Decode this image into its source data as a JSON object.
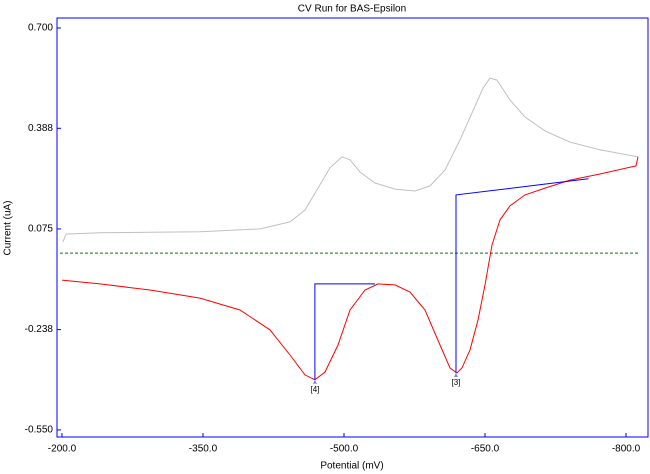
{
  "chart_data": {
    "type": "line",
    "title": "CV Run for BAS-Epsilon",
    "x_label": "Potential (mV)",
    "y_label": "Current (uA)",
    "xlim": [
      -194.7,
      -823.4
    ],
    "ylim": [
      -0.572,
      0.731
    ],
    "xticks": [
      {
        "value": -200,
        "label": "-200.0"
      },
      {
        "value": -350,
        "label": "-350.0"
      },
      {
        "value": -500,
        "label": "-500.0"
      },
      {
        "value": -650,
        "label": "-650.0"
      },
      {
        "value": -800,
        "label": "-800.0"
      }
    ],
    "yticks": [
      {
        "value": 0.7,
        "label": "0.700"
      },
      0.388,
      0.075,
      -0.238,
      {
        "value": -0.55,
        "label": "-0.550"
      }
    ],
    "series": [
      {
        "color": "#c0c0c0",
        "x": [
          -201.1,
          -204.3,
          -240.4,
          -346.8,
          -410.6,
          -442.6,
          -458.5,
          -472.3,
          -485.1,
          -497.9,
          -506.4,
          -517,
          -533,
          -554.3,
          -575.5,
          -591.5,
          -607.4,
          -623.4,
          -636.2,
          -647.9,
          -655.3,
          -662.8,
          -676.6,
          -692.6,
          -713.8,
          -740.4,
          -772.3,
          -812.8
        ],
        "y": [
          0.035,
          0.059,
          0.063,
          0.066,
          0.075,
          0.097,
          0.134,
          0.202,
          0.265,
          0.299,
          0.29,
          0.252,
          0.218,
          0.199,
          0.193,
          0.209,
          0.258,
          0.352,
          0.436,
          0.513,
          0.544,
          0.538,
          0.476,
          0.423,
          0.38,
          0.345,
          0.321,
          0.299
        ]
      },
      {
        "color": "#ff0000",
        "x": [
          -812.8,
          -810.6,
          -772.3,
          -740.4,
          -713.8,
          -692.6,
          -676.6,
          -666,
          -657.4,
          -650,
          -642.6,
          -634,
          -625.5,
          -620.2,
          -612.8,
          -602.1,
          -586.2,
          -570.2,
          -554.3,
          -536.2,
          -522.3,
          -506.4,
          -493.6,
          -479.8,
          -469.1,
          -458.5,
          -442.6,
          -421.3,
          -389.4,
          -346.8,
          -293.6,
          -240.4,
          -200
        ],
        "y": [
          0.299,
          0.271,
          0.246,
          0.227,
          0.202,
          0.181,
          0.147,
          0.103,
          0.025,
          -0.099,
          -0.208,
          -0.301,
          -0.357,
          -0.373,
          -0.357,
          -0.286,
          -0.177,
          -0.121,
          -0.099,
          -0.096,
          -0.115,
          -0.177,
          -0.286,
          -0.37,
          -0.394,
          -0.379,
          -0.317,
          -0.239,
          -0.177,
          -0.14,
          -0.115,
          -0.096,
          -0.084
        ]
      },
      {
        "color": "#0000ff",
        "x": [
          -469.1,
          -469.1,
          -533
        ],
        "y": [
          -0.394,
          -0.096,
          -0.096
        ]
      },
      {
        "color": "#0000ff",
        "x": [
          -619.1,
          -619.1,
          -760
        ],
        "y": [
          -0.373,
          0.181,
          0.231
        ]
      }
    ],
    "reference_line": {
      "value": 0,
      "color": "#008000"
    },
    "annotations": [
      {
        "text": "[4]",
        "x": -469.1,
        "y": -0.394
      },
      {
        "text": "[3]",
        "x": -619.1,
        "y": -0.373
      }
    ],
    "frame_color": "#0000ff"
  }
}
